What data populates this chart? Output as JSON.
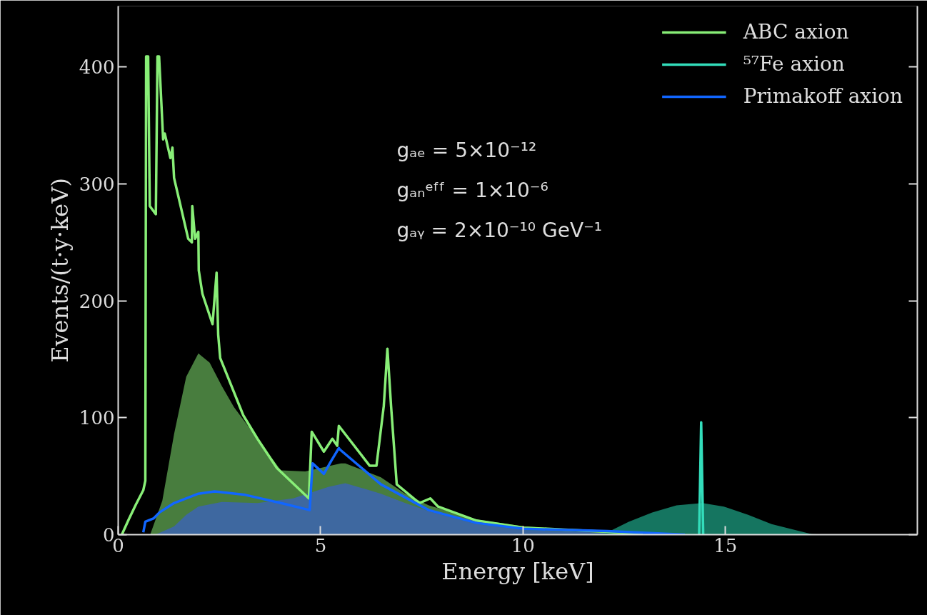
{
  "chart_data": {
    "type": "line",
    "xlabel": "Energy [keV]",
    "ylabel": "Events/(t·y·keV)",
    "xlim": [
      0,
      19.74
    ],
    "ylim": [
      0,
      452
    ],
    "xticks": [
      0,
      5,
      10,
      15
    ],
    "yticks": [
      0,
      100,
      200,
      300,
      400
    ],
    "legend": "top right",
    "annotations": [
      "gₐₑ = 5×10⁻¹²",
      "gₐₙᵉᶠᶠ = 1×10⁻⁶",
      "gₐᵧ = 2×10⁻¹⁰ GeV⁻¹"
    ],
    "series": [
      {
        "type": "area",
        "color": "#487d3e",
        "x": [
          0.79,
          1.09,
          1.38,
          1.68,
          1.98,
          2.26,
          2.56,
          2.86,
          3.44,
          4.02,
          4.62,
          5.5,
          5.61,
          6.49,
          7.09,
          7.67,
          8.85,
          10.02,
          12.08,
          13.0,
          14.0
        ],
        "values": [
          0,
          29,
          86,
          135,
          155,
          147,
          127,
          109,
          82,
          55,
          54,
          61,
          61,
          49,
          35,
          25,
          13,
          7,
          3,
          0.5,
          0
        ]
      },
      {
        "type": "area",
        "color": "#3e68a0",
        "x": [
          0.92,
          1.38,
          1.68,
          1.98,
          2.56,
          3.44,
          4.32,
          5.2,
          5.61,
          5.91,
          6.49,
          7.09,
          7.67,
          8.85,
          10.02,
          12.08,
          13.0
        ],
        "values": [
          0,
          7,
          17,
          24,
          28,
          27,
          31,
          41,
          44,
          41,
          35,
          27,
          20,
          9,
          4,
          1.5,
          0
        ]
      },
      {
        "type": "area",
        "color": "#157560",
        "x": [
          11.5,
          12.03,
          12.61,
          13.19,
          13.79,
          14.43,
          14.96,
          15.56,
          16.14,
          16.72,
          17.13,
          17.5
        ],
        "values": [
          0,
          1,
          11,
          19,
          25,
          27,
          24,
          17,
          9,
          4,
          0.5,
          0
        ]
      },
      {
        "name": "ABC axion",
        "color": "#88ee77",
        "x": [
          0.09,
          0.26,
          0.44,
          0.62,
          0.67,
          0.69,
          0.74,
          0.78,
          0.93,
          0.97,
          1.01,
          1.11,
          1.15,
          1.29,
          1.34,
          1.38,
          1.73,
          1.82,
          1.83,
          1.9,
          1.98,
          1.99,
          2.08,
          2.33,
          2.43,
          2.47,
          2.52,
          3.09,
          3.44,
          3.92,
          4.71,
          4.78,
          5.08,
          5.29,
          5.41,
          5.45,
          6.21,
          6.38,
          6.56,
          6.65,
          6.74,
          6.88,
          7.44,
          7.71,
          7.9,
          8.85,
          10.02,
          12.08,
          12.96
        ],
        "values": [
          0,
          13,
          26,
          38,
          46,
          409,
          409,
          281,
          274,
          409,
          409,
          338,
          343,
          322,
          331,
          305,
          253,
          250,
          281,
          253,
          259,
          226,
          206,
          180,
          224,
          171,
          151,
          102,
          82,
          57,
          31,
          88,
          71,
          82,
          76,
          93,
          59,
          59,
          110,
          159,
          110,
          43,
          27,
          31,
          24,
          12,
          6,
          2.5,
          0
        ]
      },
      {
        "name": "⁵⁷Fe axion",
        "color": "#33ddbb",
        "x": [
          14.35,
          14.4,
          14.45
        ],
        "values": [
          0,
          96,
          0
        ]
      },
      {
        "name": "Primakoff axion",
        "color": "#1166ff",
        "x": [
          0.62,
          0.67,
          0.88,
          1.02,
          1.38,
          1.98,
          2.38,
          3.14,
          4.02,
          4.73,
          4.8,
          5.08,
          5.26,
          5.45,
          5.47,
          6.49,
          7.67,
          8.85,
          10.02,
          12.08,
          14.0
        ],
        "values": [
          2,
          11,
          14,
          19,
          27,
          35,
          37,
          34,
          27,
          21,
          61,
          52,
          63,
          74,
          73,
          43,
          21,
          10,
          5,
          3,
          0
        ]
      }
    ]
  }
}
